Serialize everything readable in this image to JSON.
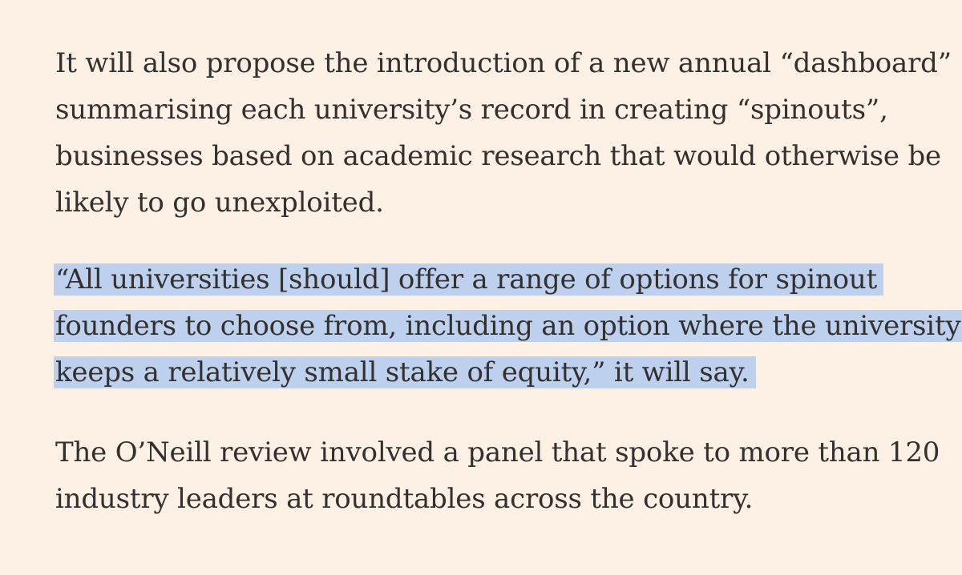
{
  "article": {
    "paragraph1": {
      "lines": [
        "It will also propose the introduction of a new annual “dashboard”",
        "summarising each university’s record in creating “spinouts”,",
        "businesses based on academic research that would otherwise be",
        "likely to go unexploited."
      ]
    },
    "paragraph2": {
      "highlighted": true,
      "highlight_color": "#bdd1ef",
      "lines": [
        "“All universities [should] offer a range of options for spinout",
        "founders to choose from, including an option where the university",
        "keeps a relatively small stake of equity,” it will say."
      ]
    },
    "paragraph3": {
      "lines": [
        "The O’Neill review involved a panel that spoke to more than 120",
        "industry leaders at roundtables across the country."
      ]
    }
  },
  "colors": {
    "background": "#fdf1e5",
    "text": "#33302e",
    "highlight": "#bdd1ef"
  }
}
